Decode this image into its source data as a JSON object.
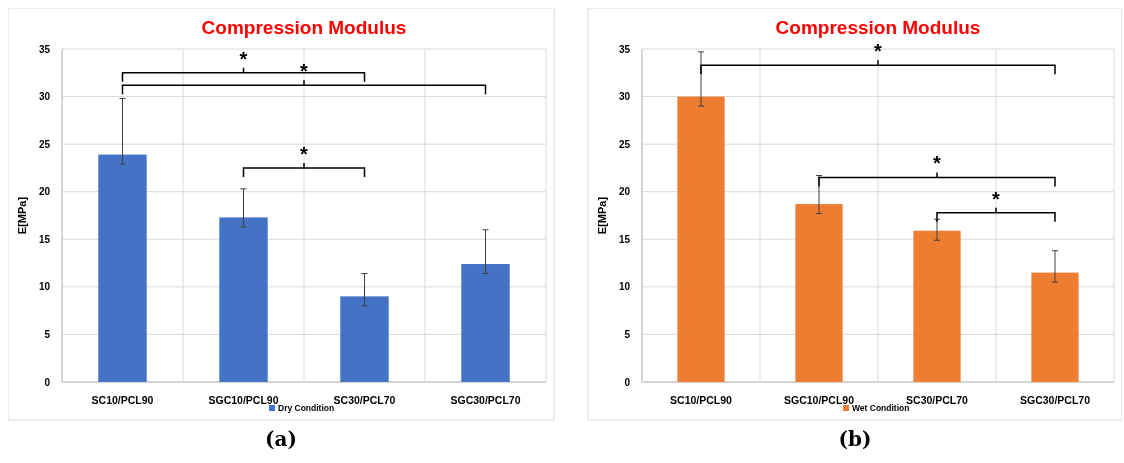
{
  "chart_data": [
    {
      "type": "bar",
      "title": "Compression Modulus",
      "ylabel": "E[MPa]",
      "categories": [
        "SC10/PCL90",
        "SGC10/PCL90",
        "SC30/PCL70",
        "SGC30/PCL70"
      ],
      "series": [
        {
          "name": "Dry Condition",
          "color": "#4472c4",
          "values": [
            23.9,
            17.3,
            9.0,
            12.4
          ],
          "errors": [
            [
              22.9,
              29.8
            ],
            [
              16.3,
              20.3
            ],
            [
              8.0,
              11.4
            ],
            [
              11.4,
              16.0
            ]
          ]
        }
      ],
      "ylim": [
        0,
        35
      ],
      "yticks": [
        0,
        5,
        10,
        15,
        20,
        25,
        30,
        35
      ],
      "grid": true,
      "legend": "bottom",
      "annotations": [
        "*",
        "*",
        "*",
        "(a)"
      ]
    },
    {
      "type": "bar",
      "title": "Compression Modulus",
      "ylabel": "E[MPa]",
      "categories": [
        "SC10/PCL90",
        "SGC10/PCL90",
        "SC30/PCL70",
        "SGC30/PCL70"
      ],
      "series": [
        {
          "name": "Wet Condition",
          "color": "#ed7d31",
          "values": [
            30.0,
            18.7,
            15.9,
            11.5
          ],
          "errors": [
            [
              29.0,
              34.7
            ],
            [
              17.7,
              21.7
            ],
            [
              14.9,
              17.1
            ],
            [
              10.5,
              13.8
            ]
          ]
        }
      ],
      "ylim": [
        0,
        35
      ],
      "yticks": [
        0,
        5,
        10,
        15,
        20,
        25,
        30,
        35
      ],
      "grid": true,
      "legend": "bottom",
      "annotations": [
        "*",
        "*",
        "*",
        "(b)"
      ]
    }
  ]
}
